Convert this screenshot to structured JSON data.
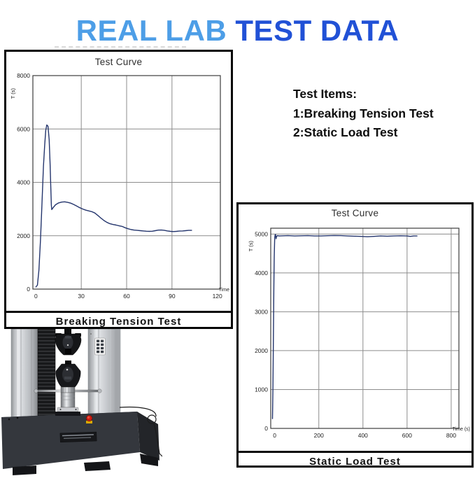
{
  "title": {
    "part1": "REAL LAB ",
    "part2": "TEST DATA",
    "color1": "#4d9ee7",
    "color2": "#2151d6"
  },
  "test_items": {
    "heading": "Test Items:",
    "items": [
      "1:Breaking Tension Test",
      "2:Static Load Test"
    ]
  },
  "chart_data": [
    {
      "type": "line",
      "title": "Test Curve",
      "footer": "Breaking Tension Test",
      "xlabel": "Time",
      "ylabel": "T (s)",
      "xlim": [
        -2,
        122
      ],
      "ylim": [
        0,
        8000
      ],
      "xticks": [
        0,
        30,
        60,
        90,
        120
      ],
      "yticks": [
        0,
        2000,
        4000,
        6000,
        8000
      ],
      "grid": true,
      "legend": "none",
      "line_color": "#24356d",
      "points": [
        [
          0,
          80
        ],
        [
          1,
          150
        ],
        [
          2,
          700
        ],
        [
          3,
          1800
        ],
        [
          4,
          3200
        ],
        [
          5,
          4600
        ],
        [
          5.8,
          5400
        ],
        [
          6.5,
          5950
        ],
        [
          7.2,
          6150
        ],
        [
          8,
          6100
        ],
        [
          8.8,
          5600
        ],
        [
          9.4,
          4700
        ],
        [
          9.8,
          3900
        ],
        [
          10.2,
          3150
        ],
        [
          10.5,
          2980
        ],
        [
          11.5,
          3060
        ],
        [
          13,
          3160
        ],
        [
          15,
          3230
        ],
        [
          17,
          3260
        ],
        [
          19,
          3270
        ],
        [
          21,
          3250
        ],
        [
          23,
          3220
        ],
        [
          25,
          3170
        ],
        [
          27,
          3110
        ],
        [
          29,
          3050
        ],
        [
          31,
          3000
        ],
        [
          33,
          2960
        ],
        [
          35,
          2930
        ],
        [
          37,
          2900
        ],
        [
          39,
          2850
        ],
        [
          41,
          2760
        ],
        [
          43,
          2660
        ],
        [
          45,
          2570
        ],
        [
          47,
          2500
        ],
        [
          49,
          2450
        ],
        [
          51,
          2420
        ],
        [
          53,
          2400
        ],
        [
          55,
          2370
        ],
        [
          57,
          2350
        ],
        [
          59,
          2300
        ],
        [
          61,
          2260
        ],
        [
          63,
          2230
        ],
        [
          65,
          2210
        ],
        [
          67,
          2200
        ],
        [
          69,
          2190
        ],
        [
          71,
          2180
        ],
        [
          73,
          2170
        ],
        [
          75,
          2165
        ],
        [
          77,
          2170
        ],
        [
          79,
          2190
        ],
        [
          81,
          2210
        ],
        [
          83,
          2215
        ],
        [
          85,
          2200
        ],
        [
          87,
          2180
        ],
        [
          89,
          2165
        ],
        [
          91,
          2155
        ],
        [
          93,
          2165
        ],
        [
          95,
          2175
        ],
        [
          97,
          2180
        ],
        [
          99,
          2190
        ],
        [
          101,
          2200
        ],
        [
          103,
          2200
        ]
      ]
    },
    {
      "type": "line",
      "title": "Test Curve",
      "footer": "Static Load Test",
      "xlabel": "Time  (s)",
      "ylabel": "T (s)",
      "xlim": [
        -18,
        835
      ],
      "ylim": [
        0,
        5150
      ],
      "xticks": [
        0,
        200,
        400,
        600,
        800
      ],
      "yticks": [
        0,
        1000,
        2000,
        3000,
        4000,
        5000
      ],
      "grid": true,
      "legend": "none",
      "line_color": "#24356d",
      "points": [
        [
          -10,
          250
        ],
        [
          -9,
          600
        ],
        [
          -8,
          1100
        ],
        [
          -7,
          1700
        ],
        [
          -6,
          2300
        ],
        [
          -5,
          2900
        ],
        [
          -4,
          3500
        ],
        [
          -3,
          4000
        ],
        [
          -2,
          4400
        ],
        [
          -1,
          4700
        ],
        [
          0,
          4900
        ],
        [
          2,
          4980
        ],
        [
          4,
          4990
        ],
        [
          6,
          4880
        ],
        [
          8,
          4930
        ],
        [
          12,
          4960
        ],
        [
          20,
          4950
        ],
        [
          40,
          4955
        ],
        [
          60,
          4960
        ],
        [
          90,
          4950
        ],
        [
          120,
          4955
        ],
        [
          150,
          4960
        ],
        [
          180,
          4950
        ],
        [
          210,
          4950
        ],
        [
          240,
          4958
        ],
        [
          270,
          4962
        ],
        [
          300,
          4960
        ],
        [
          330,
          4950
        ],
        [
          360,
          4945
        ],
        [
          390,
          4940
        ],
        [
          420,
          4930
        ],
        [
          450,
          4940
        ],
        [
          480,
          4950
        ],
        [
          510,
          4945
        ],
        [
          540,
          4950
        ],
        [
          570,
          4955
        ],
        [
          600,
          4950
        ],
        [
          615,
          4940
        ],
        [
          630,
          4950
        ],
        [
          645,
          4950
        ]
      ]
    }
  ],
  "machine": {
    "description": "universal-tensile-testing-machine-photo",
    "estop_color": "#cf1d10"
  }
}
